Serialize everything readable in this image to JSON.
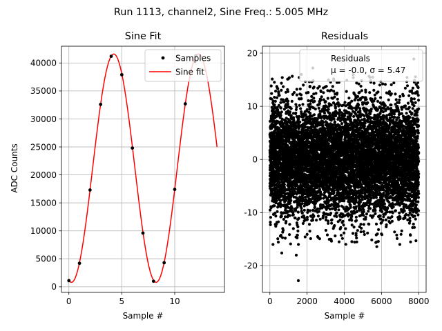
{
  "figure": {
    "suptitle": "Run 1113, channel2, Sine Freq.: 5.005 MHz"
  },
  "colors": {
    "samples": "#000000",
    "fit": "#ff0000",
    "grid": "#b0b0b0",
    "axes": "#000000"
  },
  "chart_data": [
    {
      "type": "line",
      "title": "Sine Fit",
      "xlabel": "Sample #",
      "ylabel": "ADC Counts",
      "xlim": [
        -0.7,
        14.7
      ],
      "ylim": [
        -1000,
        43000
      ],
      "xticks": [
        0,
        5,
        10
      ],
      "yticks": [
        0,
        5000,
        10000,
        15000,
        20000,
        25000,
        30000,
        35000,
        40000
      ],
      "grid": true,
      "legend": {
        "position": "top-right",
        "entries": [
          "Samples",
          "Sine fit"
        ]
      },
      "series": [
        {
          "name": "Samples",
          "style": "points",
          "x": [
            0,
            1,
            2,
            3,
            4,
            5,
            6,
            7,
            8,
            9,
            10,
            11,
            12
          ],
          "y": [
            1100,
            4200,
            17300,
            32600,
            41200,
            37900,
            24800,
            9600,
            1000,
            4300,
            17400,
            32700,
            41300
          ]
        },
        {
          "name": "Sine fit",
          "style": "line",
          "function": {
            "offset": 21200,
            "amplitude": 20400,
            "samples_per_cycle": 7.996,
            "phase_sample": 0.244,
            "x_start": 0,
            "x_end": 14
          }
        }
      ]
    },
    {
      "type": "scatter",
      "title": "Residuals",
      "xlabel": "Sample #",
      "ylabel": "",
      "xlim": [
        -400,
        8400
      ],
      "ylim": [
        -25,
        21.3
      ],
      "xticks": [
        0,
        2000,
        4000,
        6000,
        8000
      ],
      "yticks": [
        -20,
        -10,
        0,
        10,
        20
      ],
      "grid": true,
      "legend": {
        "position": "top-right",
        "entries": [
          "Residuals",
          "μ = -0.0, σ = 5.47"
        ]
      },
      "series": [
        {
          "name": "Residuals",
          "style": "points",
          "n_points": 8000,
          "x_range": [
            0,
            8000
          ],
          "mean": -0.0,
          "std": 5.47,
          "outliers": [
            [
              1530,
              -22.8
            ],
            [
              2310,
              17.2
            ],
            [
              7740,
              18.9
            ],
            [
              640,
              -17.6
            ],
            [
              1420,
              -18.0
            ],
            [
              1690,
              16.0
            ],
            [
              5750,
              -16.4
            ],
            [
              3720,
              -15.5
            ]
          ]
        }
      ]
    }
  ]
}
